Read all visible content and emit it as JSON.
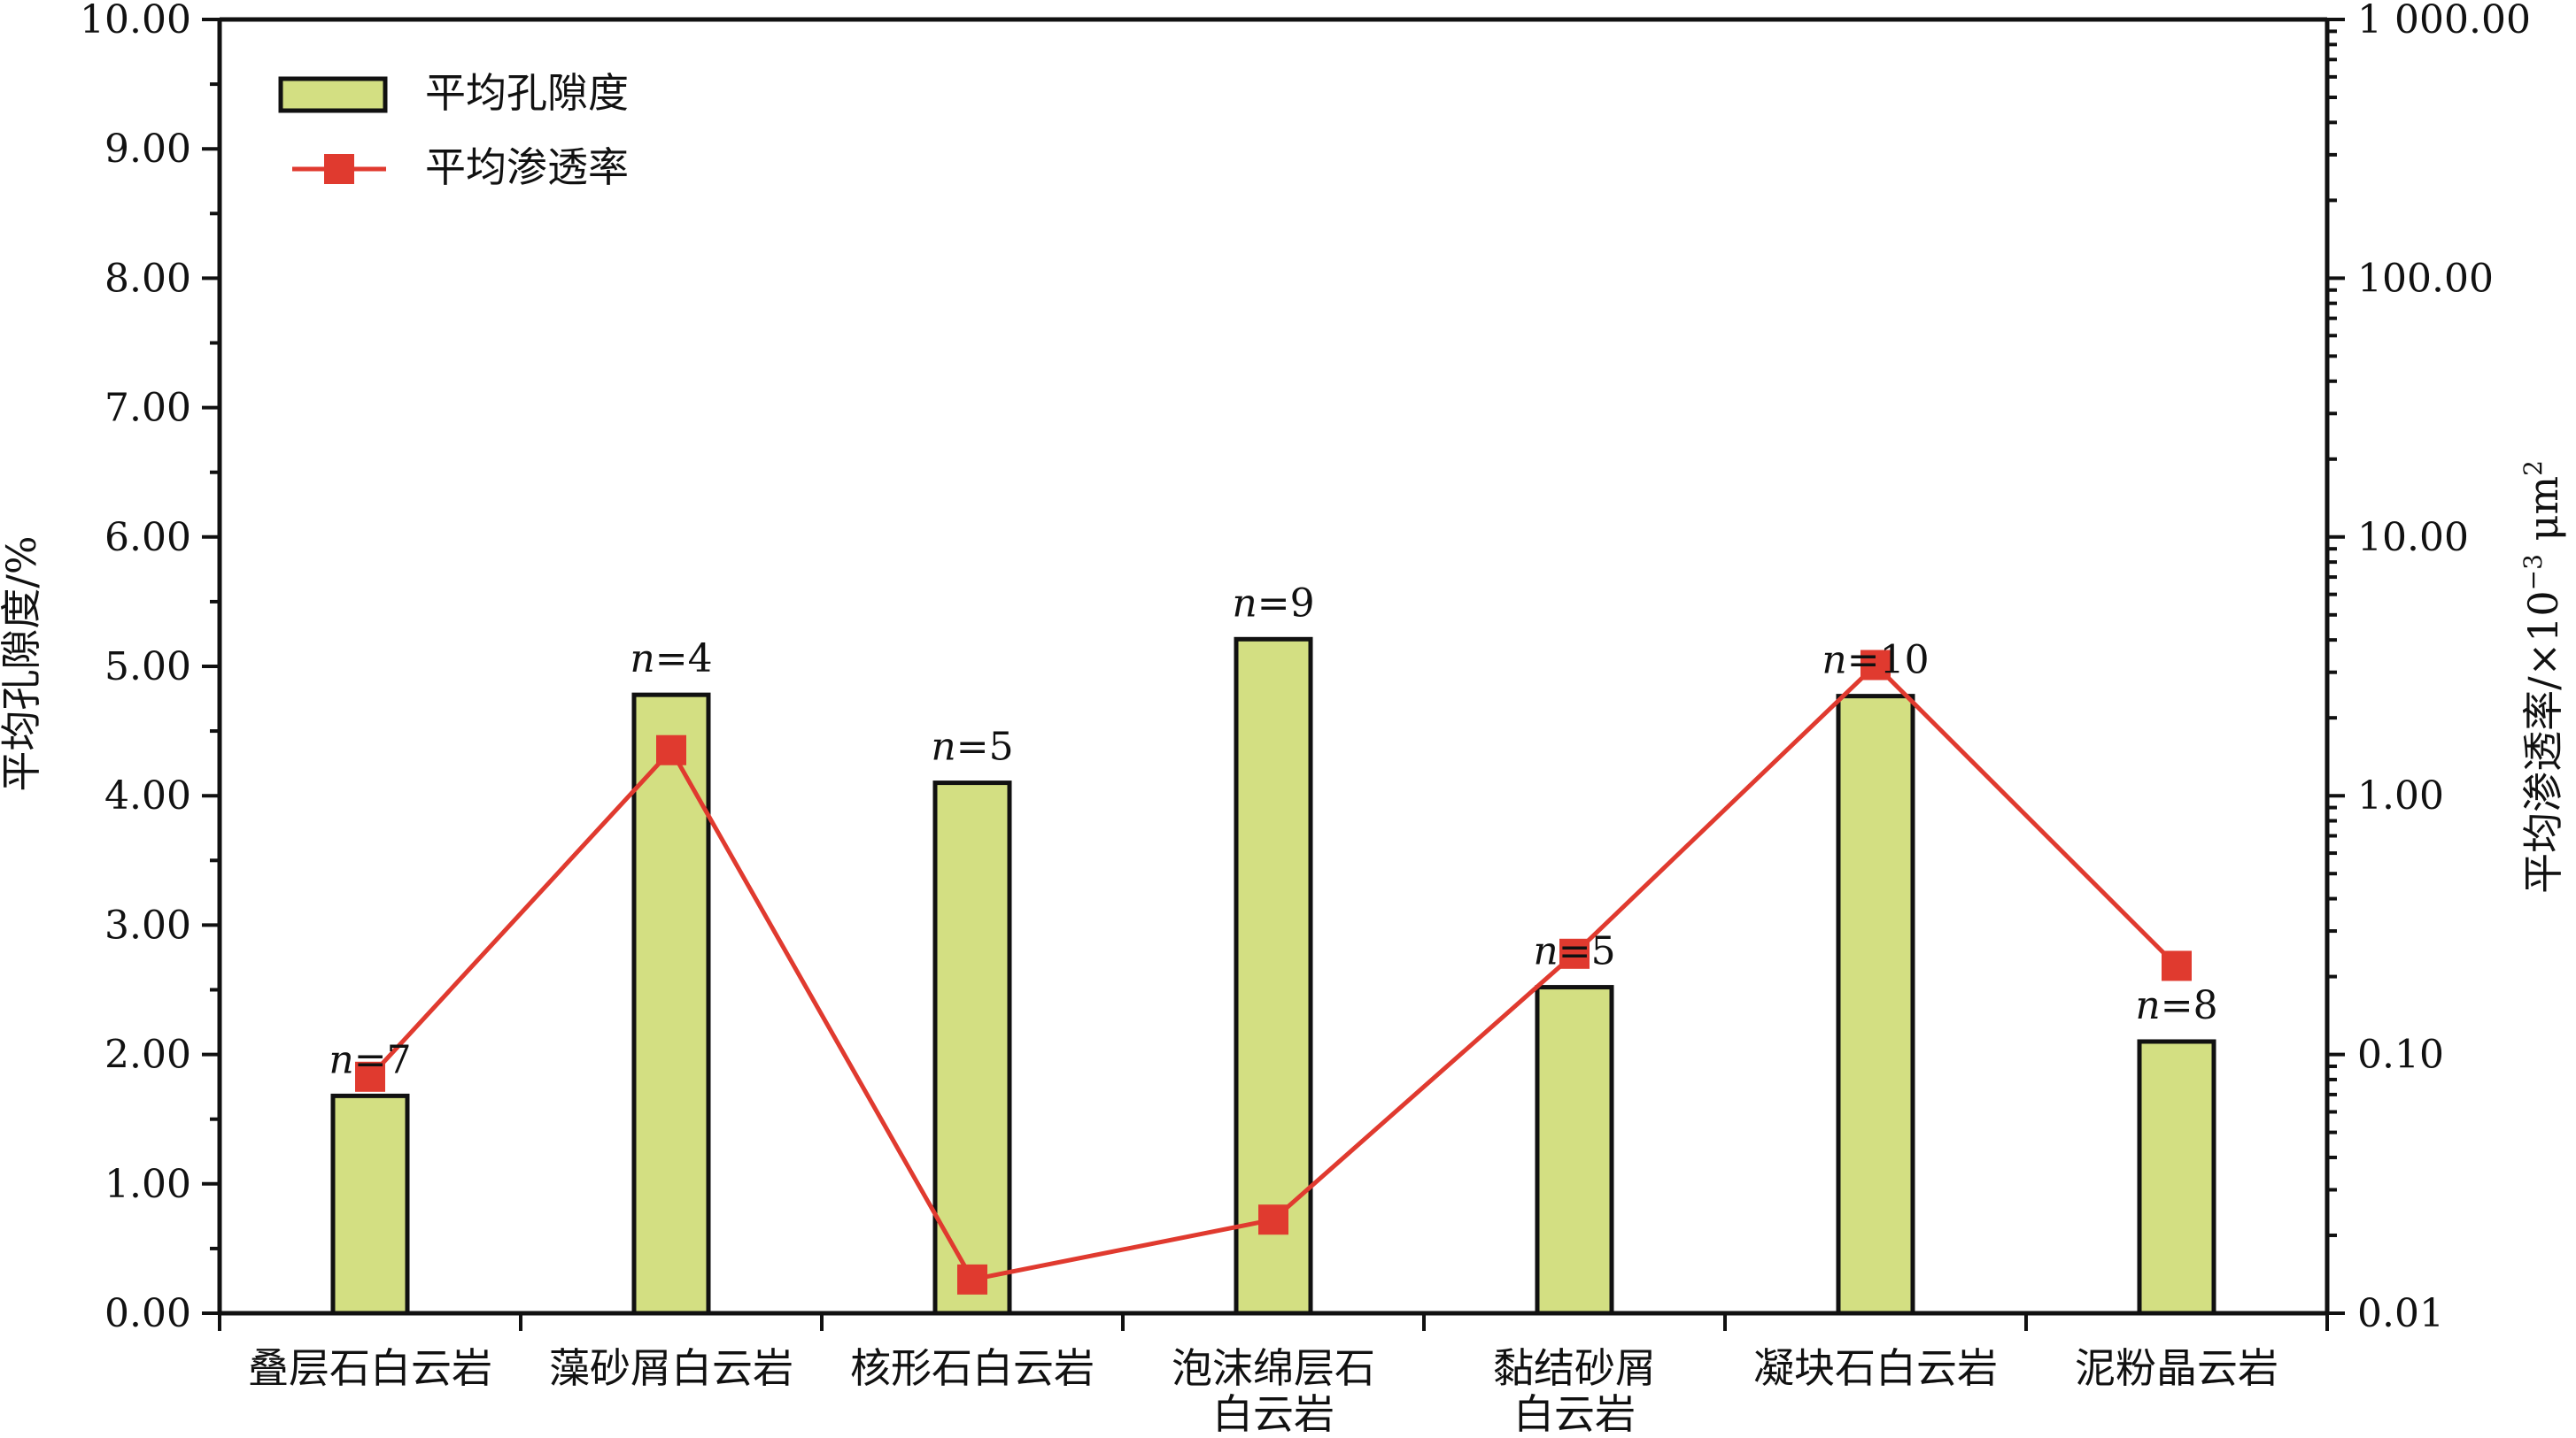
{
  "chart_data": {
    "type": "bar",
    "categories": [
      [
        "叠层石白云岩"
      ],
      [
        "藻砂屑白云岩"
      ],
      [
        "核形石白云岩"
      ],
      [
        "泡沫绵层石",
        "白云岩"
      ],
      [
        "黏结砂屑",
        "白云岩"
      ],
      [
        "凝块石白云岩"
      ],
      [
        "泥粉晶云岩"
      ]
    ],
    "series": [
      {
        "name": "平均孔隙度",
        "type": "bar",
        "axis": "left",
        "color": "#d3df82",
        "values": [
          1.68,
          4.78,
          4.1,
          5.21,
          2.52,
          4.77,
          2.1
        ]
      },
      {
        "name": "平均渗透率",
        "type": "line",
        "axis": "right",
        "color": "#e03a2f",
        "values": [
          0.082,
          1.5,
          0.0135,
          0.023,
          0.245,
          3.2,
          0.22
        ]
      }
    ],
    "sample_counts": [
      {
        "n": "n",
        "eq": "=7"
      },
      {
        "n": "n",
        "eq": "=4"
      },
      {
        "n": "n",
        "eq": "=5"
      },
      {
        "n": "n",
        "eq": "=9"
      },
      {
        "n": "n",
        "eq": "=5"
      },
      {
        "n": "n",
        "eq": "=10"
      },
      {
        "n": "n",
        "eq": "=8"
      }
    ],
    "y_left": {
      "label": "平均孔隙度/%",
      "ylim": [
        0,
        10
      ],
      "ticks": [
        "0.00",
        "1.00",
        "2.00",
        "3.00",
        "4.00",
        "5.00",
        "6.00",
        "7.00",
        "8.00",
        "9.00",
        "10.00"
      ]
    },
    "y_right": {
      "label_main": "平均渗透率/×10",
      "label_sup1": "−3",
      "label_unit": " μm",
      "label_sup2": "2",
      "scale": "log",
      "ylim": [
        0.01,
        1000
      ],
      "ticks": [
        "0.01",
        "0.10",
        "1.00",
        "10.00",
        "100.00",
        "1 000.00"
      ]
    },
    "legend": {
      "position": "top-left",
      "items": [
        "平均孔隙度",
        "平均渗透率"
      ]
    },
    "grid": false
  }
}
